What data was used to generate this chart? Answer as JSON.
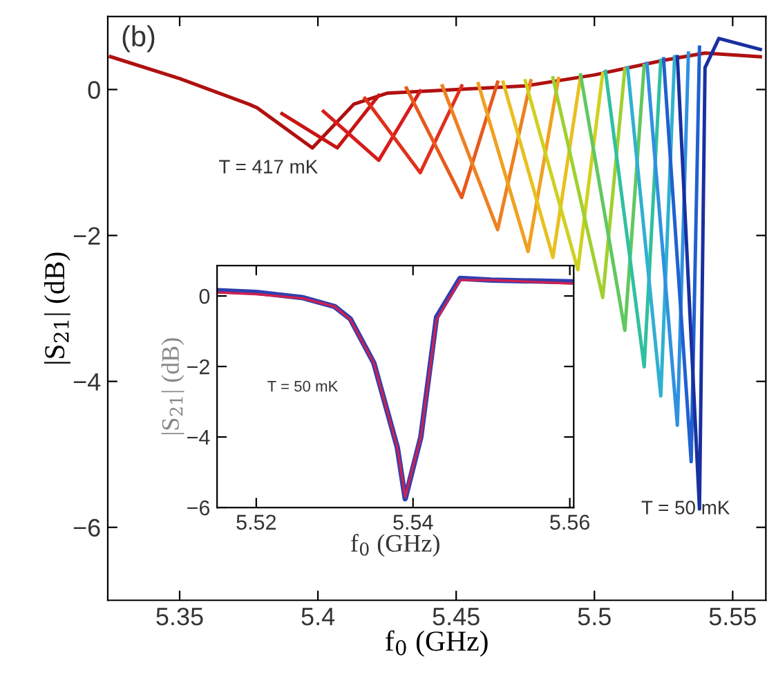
{
  "chart_data": [
    {
      "type": "line",
      "xlabel": "f$_{0}$ (GHz)",
      "ylabel": "|S$_{21}$| (dB)",
      "xlim": [
        5.324,
        5.562
      ],
      "ylim": [
        -7.0,
        1.0
      ],
      "xticks": [
        5.35,
        5.4,
        5.45,
        5.5,
        5.55
      ],
      "yticks": [
        {
          "value": -6,
          "label": "−6"
        },
        {
          "value": -4,
          "label": "−4"
        },
        {
          "value": -2,
          "label": "−2"
        },
        0
      ],
      "grid": false,
      "legend": false,
      "annotations": [
        "(b)",
        "T = 417 mK",
        "T = 50 mK"
      ],
      "series": [
        {
          "color": "#b01010",
          "x": [
            5.325,
            5.35,
            5.375,
            5.378,
            5.398,
            5.413,
            5.425,
            5.45,
            5.475,
            5.5,
            5.525,
            5.54,
            5.56
          ],
          "values": [
            0.45,
            0.15,
            -0.2,
            -0.25,
            -0.8,
            -0.2,
            -0.05,
            0.0,
            0.05,
            0.2,
            0.4,
            0.5,
            0.45
          ]
        },
        {
          "color": "#c81414",
          "x": [
            5.387,
            5.407,
            5.422
          ],
          "values": [
            -0.33,
            -0.8,
            -0.08
          ]
        },
        {
          "color": "#d81c1c",
          "x": [
            5.402,
            5.422,
            5.437
          ],
          "values": [
            -0.3,
            -0.97,
            -0.02
          ]
        },
        {
          "color": "#e0301c",
          "x": [
            5.417,
            5.437,
            5.452
          ],
          "values": [
            -0.12,
            -1.14,
            0.05
          ]
        },
        {
          "color": "#e85a1c",
          "x": [
            5.432,
            5.452,
            5.465
          ],
          "values": [
            0.02,
            -1.48,
            0.1
          ]
        },
        {
          "color": "#ee8020",
          "x": [
            5.445,
            5.465,
            5.477
          ],
          "values": [
            0.05,
            -1.92,
            0.12
          ]
        },
        {
          "color": "#f0a020",
          "x": [
            5.458,
            5.476,
            5.487
          ],
          "values": [
            0.08,
            -2.22,
            0.15
          ]
        },
        {
          "color": "#e8c020",
          "x": [
            5.467,
            5.485,
            5.495
          ],
          "values": [
            0.1,
            -2.3,
            0.18
          ]
        },
        {
          "color": "#d0d020",
          "x": [
            5.475,
            5.494,
            5.503
          ],
          "values": [
            0.12,
            -2.47,
            0.22
          ]
        },
        {
          "color": "#a0d030",
          "x": [
            5.485,
            5.503,
            5.511
          ],
          "values": [
            0.16,
            -2.85,
            0.28
          ]
        },
        {
          "color": "#60c860",
          "x": [
            5.495,
            5.511,
            5.518
          ],
          "values": [
            0.2,
            -3.3,
            0.33
          ]
        },
        {
          "color": "#30c0a0",
          "x": [
            5.504,
            5.518,
            5.524
          ],
          "values": [
            0.25,
            -3.8,
            0.4
          ]
        },
        {
          "color": "#30b0d0",
          "x": [
            5.512,
            5.524,
            5.529
          ],
          "values": [
            0.3,
            -4.2,
            0.45
          ]
        },
        {
          "color": "#3090e0",
          "x": [
            5.519,
            5.53,
            5.534
          ],
          "values": [
            0.36,
            -4.6,
            0.5
          ]
        },
        {
          "color": "#2060d0",
          "x": [
            5.525,
            5.535,
            5.538
          ],
          "values": [
            0.42,
            -5.1,
            0.58
          ]
        },
        {
          "color": "#1830a0",
          "x": [
            5.53,
            5.538,
            5.54,
            5.545,
            5.56
          ],
          "values": [
            0.45,
            -5.75,
            0.3,
            0.7,
            0.55
          ]
        }
      ]
    },
    {
      "type": "line",
      "xlabel": "f$_{0}$ (GHz)",
      "ylabel": "|S$_{21}$| (dB)",
      "xlim": [
        5.515,
        5.5605
      ],
      "ylim": [
        -6.0,
        0.86
      ],
      "xticks": [
        5.52,
        5.54,
        5.56
      ],
      "yticks": [
        {
          "value": -6,
          "label": "−6"
        },
        {
          "value": -4,
          "label": "−4"
        },
        {
          "value": -2,
          "label": "−2"
        },
        0
      ],
      "grid": false,
      "legend": false,
      "annotations": [
        "T = 50 mK"
      ],
      "series": [
        {
          "color": "#3040b0",
          "x": [
            5.515,
            5.52,
            5.526,
            5.53,
            5.532,
            5.535,
            5.538,
            5.539,
            5.541,
            5.543,
            5.546,
            5.55,
            5.5605
          ],
          "values": [
            0.15,
            0.1,
            -0.05,
            -0.3,
            -0.65,
            -1.9,
            -4.3,
            -5.75,
            -4.0,
            -0.6,
            0.5,
            0.45,
            0.4
          ]
        },
        {
          "color": "#d02050",
          "x": [
            5.515,
            5.52,
            5.526,
            5.53,
            5.532,
            5.535,
            5.538,
            5.539,
            5.541,
            5.543,
            5.546,
            5.55,
            5.5605
          ],
          "values": [
            0.1,
            0.05,
            -0.07,
            -0.3,
            -0.67,
            -1.9,
            -4.3,
            -5.7,
            -4.0,
            -0.67,
            0.45,
            0.45,
            0.35
          ]
        }
      ]
    }
  ]
}
